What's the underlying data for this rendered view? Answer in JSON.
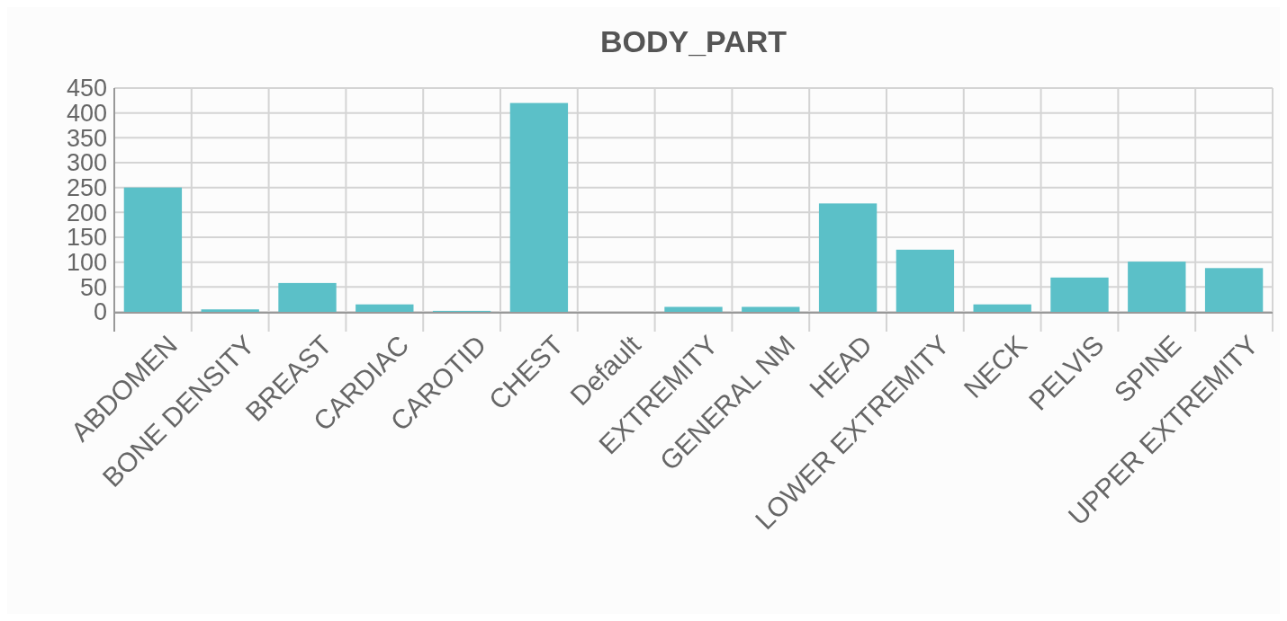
{
  "chart_data": {
    "type": "bar",
    "title": "BODY_PART",
    "categories": [
      "ABDOMEN",
      "BONE DENSITY",
      "BREAST",
      "CARDIAC",
      "CAROTID",
      "CHEST",
      "Default",
      "EXTREMITY",
      "GENERAL NM",
      "HEAD",
      "LOWER EXTREMITY",
      "NECK",
      "PELVIS",
      "SPINE",
      "UPPER EXTREMITY"
    ],
    "values": [
      250,
      5,
      58,
      15,
      2,
      420,
      0,
      10,
      10,
      218,
      125,
      15,
      69,
      101,
      88
    ],
    "color": "#5bc0c8",
    "ylim": [
      0,
      450
    ],
    "yticks": [
      0,
      50,
      100,
      150,
      200,
      250,
      300,
      350,
      400,
      450
    ],
    "grid": true
  }
}
